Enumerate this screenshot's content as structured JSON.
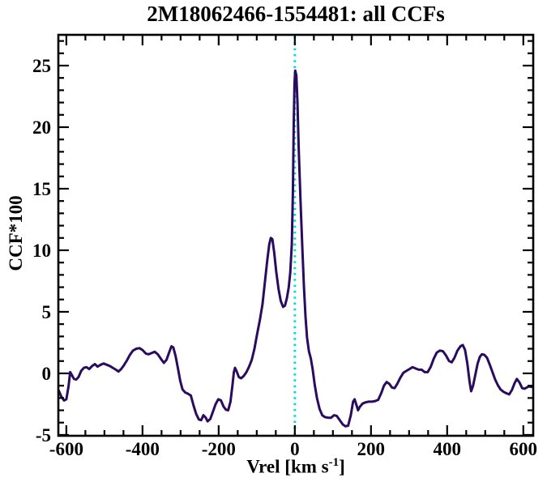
{
  "page": {
    "background": "#ffffff",
    "text_color": "#000000"
  },
  "chart_data": {
    "type": "line",
    "title": "2M18062466-1554481: all CCFs",
    "xlabel": {
      "main": "Vrel [km s",
      "sup": "-1",
      "end": "]"
    },
    "ylabel": "CCF*100",
    "xlim": [
      -621,
      626
    ],
    "ylim": [
      -5.07,
      27.5
    ],
    "xticks_major": [
      -600,
      -400,
      -200,
      0,
      200,
      400,
      600
    ],
    "xtick_labels": [
      "-600",
      "-400",
      "-200",
      "0",
      "200",
      "400",
      "600"
    ],
    "xtick_minor_step": 50,
    "yticks_major": [
      -5,
      0,
      5,
      10,
      15,
      20,
      25
    ],
    "ytick_labels": [
      "-5",
      "0",
      "5",
      "10",
      "15",
      "20",
      "25"
    ],
    "ytick_minor_step": 1,
    "grid": false,
    "legend": "none",
    "frame_color": "#000000",
    "reference_line": {
      "x": 0,
      "color": "#00dedc",
      "style": "dotted"
    },
    "series": [
      {
        "color": "#2a0b5e",
        "line_width": 3,
        "points": [
          [
            -620,
            -1.4
          ],
          [
            -613,
            -1.9
          ],
          [
            -606,
            -2.2
          ],
          [
            -600,
            -2.1
          ],
          [
            -594,
            -1.0
          ],
          [
            -590,
            0.1
          ],
          [
            -586,
            -0.1
          ],
          [
            -580,
            -0.45
          ],
          [
            -574,
            -0.5
          ],
          [
            -568,
            -0.3
          ],
          [
            -561,
            0.2
          ],
          [
            -554,
            0.45
          ],
          [
            -547,
            0.5
          ],
          [
            -540,
            0.35
          ],
          [
            -532,
            0.6
          ],
          [
            -525,
            0.75
          ],
          [
            -518,
            0.55
          ],
          [
            -510,
            0.7
          ],
          [
            -502,
            0.8
          ],
          [
            -494,
            0.7
          ],
          [
            -486,
            0.6
          ],
          [
            -478,
            0.45
          ],
          [
            -470,
            0.3
          ],
          [
            -463,
            0.15
          ],
          [
            -456,
            0.35
          ],
          [
            -449,
            0.65
          ],
          [
            -441,
            1.05
          ],
          [
            -433,
            1.5
          ],
          [
            -425,
            1.85
          ],
          [
            -416,
            2.0
          ],
          [
            -408,
            2.05
          ],
          [
            -400,
            1.9
          ],
          [
            -391,
            1.6
          ],
          [
            -384,
            1.55
          ],
          [
            -376,
            1.65
          ],
          [
            -368,
            1.75
          ],
          [
            -360,
            1.55
          ],
          [
            -351,
            1.15
          ],
          [
            -344,
            0.85
          ],
          [
            -337,
            1.1
          ],
          [
            -330,
            1.7
          ],
          [
            -324,
            2.2
          ],
          [
            -319,
            2.1
          ],
          [
            -313,
            1.4
          ],
          [
            -307,
            0.4
          ],
          [
            -301,
            -0.6
          ],
          [
            -295,
            -1.3
          ],
          [
            -288,
            -1.55
          ],
          [
            -281,
            -1.65
          ],
          [
            -273,
            -1.8
          ],
          [
            -266,
            -2.6
          ],
          [
            -259,
            -3.3
          ],
          [
            -252,
            -3.75
          ],
          [
            -246,
            -3.8
          ],
          [
            -240,
            -3.4
          ],
          [
            -234,
            -3.6
          ],
          [
            -229,
            -3.9
          ],
          [
            -222,
            -3.7
          ],
          [
            -215,
            -3.1
          ],
          [
            -208,
            -2.5
          ],
          [
            -201,
            -2.1
          ],
          [
            -194,
            -2.2
          ],
          [
            -187,
            -2.7
          ],
          [
            -181,
            -2.95
          ],
          [
            -175,
            -3.0
          ],
          [
            -169,
            -2.3
          ],
          [
            -164,
            -1.0
          ],
          [
            -160,
            0.1
          ],
          [
            -157,
            0.45
          ],
          [
            -152,
            0.1
          ],
          [
            -147,
            -0.3
          ],
          [
            -141,
            -0.4
          ],
          [
            -134,
            -0.2
          ],
          [
            -127,
            0.1
          ],
          [
            -120,
            0.55
          ],
          [
            -113,
            1.1
          ],
          [
            -106,
            2.0
          ],
          [
            -99,
            3.2
          ],
          [
            -92,
            4.3
          ],
          [
            -85,
            5.6
          ],
          [
            -78,
            7.6
          ],
          [
            -72,
            9.3
          ],
          [
            -67,
            10.5
          ],
          [
            -63,
            11.0
          ],
          [
            -59,
            10.9
          ],
          [
            -54,
            9.8
          ],
          [
            -49,
            8.3
          ],
          [
            -43,
            6.9
          ],
          [
            -37,
            5.9
          ],
          [
            -31,
            5.4
          ],
          [
            -26,
            5.5
          ],
          [
            -21,
            6.1
          ],
          [
            -16,
            7.0
          ],
          [
            -12,
            8.2
          ],
          [
            -8,
            10.5
          ],
          [
            -5,
            15.0
          ],
          [
            -3,
            20.0
          ],
          [
            -1,
            23.5
          ],
          [
            1,
            24.6
          ],
          [
            4,
            24.2
          ],
          [
            7,
            22.0
          ],
          [
            10,
            18.5
          ],
          [
            13,
            15.8
          ],
          [
            16,
            13.2
          ],
          [
            20,
            10.0
          ],
          [
            24,
            7.0
          ],
          [
            28,
            4.6
          ],
          [
            32,
            2.9
          ],
          [
            37,
            1.8
          ],
          [
            42,
            1.2
          ],
          [
            47,
            0.3
          ],
          [
            52,
            -0.9
          ],
          [
            58,
            -2.0
          ],
          [
            65,
            -2.9
          ],
          [
            72,
            -3.4
          ],
          [
            79,
            -3.55
          ],
          [
            87,
            -3.6
          ],
          [
            95,
            -3.6
          ],
          [
            103,
            -3.4
          ],
          [
            110,
            -3.45
          ],
          [
            118,
            -3.8
          ],
          [
            126,
            -4.15
          ],
          [
            133,
            -4.3
          ],
          [
            140,
            -4.25
          ],
          [
            147,
            -3.4
          ],
          [
            153,
            -2.3
          ],
          [
            157,
            -2.1
          ],
          [
            162,
            -2.6
          ],
          [
            166,
            -3.0
          ],
          [
            171,
            -2.7
          ],
          [
            178,
            -2.45
          ],
          [
            186,
            -2.35
          ],
          [
            194,
            -2.3
          ],
          [
            203,
            -2.3
          ],
          [
            211,
            -2.25
          ],
          [
            219,
            -2.15
          ],
          [
            227,
            -1.6
          ],
          [
            234,
            -1.0
          ],
          [
            241,
            -0.7
          ],
          [
            248,
            -0.85
          ],
          [
            255,
            -1.15
          ],
          [
            262,
            -1.2
          ],
          [
            269,
            -0.85
          ],
          [
            277,
            -0.35
          ],
          [
            285,
            0.05
          ],
          [
            293,
            0.2
          ],
          [
            301,
            0.35
          ],
          [
            309,
            0.5
          ],
          [
            317,
            0.4
          ],
          [
            325,
            0.3
          ],
          [
            333,
            0.3
          ],
          [
            341,
            0.1
          ],
          [
            349,
            0.1
          ],
          [
            357,
            0.55
          ],
          [
            365,
            1.2
          ],
          [
            373,
            1.7
          ],
          [
            381,
            1.85
          ],
          [
            389,
            1.8
          ],
          [
            397,
            1.45
          ],
          [
            405,
            1.0
          ],
          [
            412,
            0.9
          ],
          [
            419,
            1.25
          ],
          [
            427,
            1.85
          ],
          [
            435,
            2.2
          ],
          [
            441,
            2.3
          ],
          [
            447,
            1.9
          ],
          [
            453,
            0.8
          ],
          [
            459,
            -0.7
          ],
          [
            463,
            -1.45
          ],
          [
            468,
            -1.0
          ],
          [
            474,
            -0.1
          ],
          [
            480,
            0.8
          ],
          [
            486,
            1.35
          ],
          [
            491,
            1.55
          ],
          [
            498,
            1.5
          ],
          [
            505,
            1.25
          ],
          [
            512,
            0.7
          ],
          [
            519,
            0.1
          ],
          [
            526,
            -0.5
          ],
          [
            533,
            -0.95
          ],
          [
            540,
            -1.3
          ],
          [
            548,
            -1.5
          ],
          [
            556,
            -1.62
          ],
          [
            563,
            -1.7
          ],
          [
            570,
            -1.35
          ],
          [
            577,
            -0.8
          ],
          [
            583,
            -0.45
          ],
          [
            590,
            -0.75
          ],
          [
            597,
            -1.2
          ],
          [
            603,
            -1.25
          ],
          [
            609,
            -1.15
          ],
          [
            615,
            -1.05
          ],
          [
            621,
            -1.1
          ]
        ]
      }
    ]
  }
}
